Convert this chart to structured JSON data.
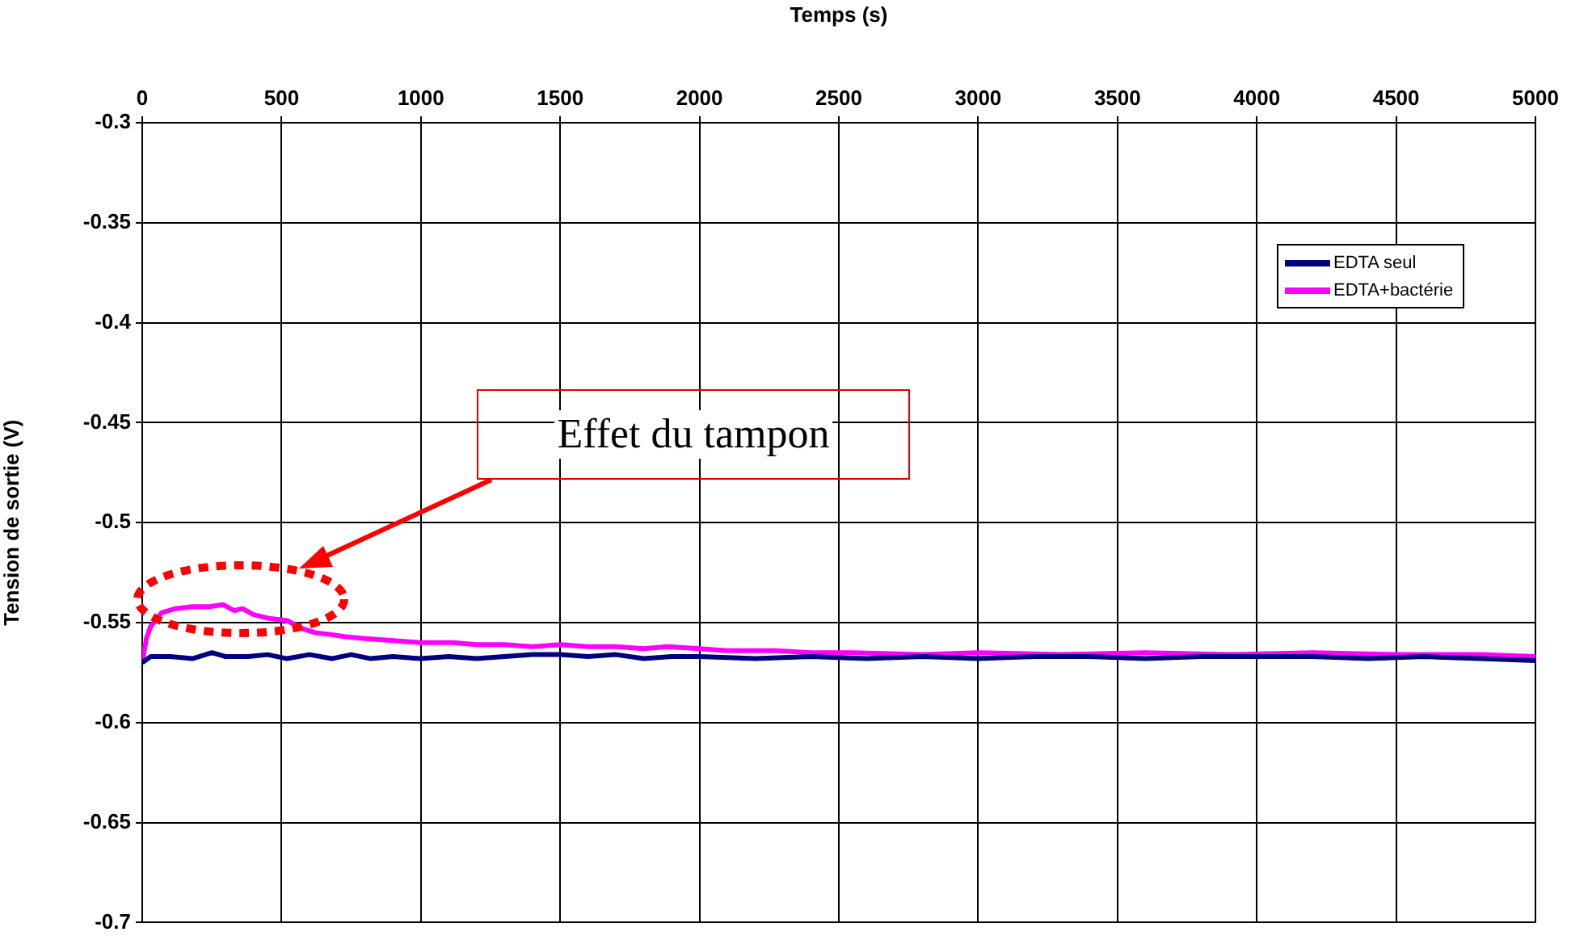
{
  "chart_data": {
    "type": "line",
    "xlabel": "Temps (s)",
    "ylabel": "Tension de sortie (V)",
    "xlim": [
      0,
      5000
    ],
    "xticks": [
      0,
      500,
      1000,
      1500,
      2000,
      2500,
      3000,
      3500,
      4000,
      4500,
      5000
    ],
    "ylim": [
      -0.7,
      -0.3
    ],
    "yticks": [
      -0.7,
      -0.65,
      -0.6,
      -0.55,
      -0.5,
      -0.45,
      -0.4,
      -0.35,
      -0.3
    ],
    "grid": true,
    "legend": "top right",
    "marker": "none",
    "line_style": "solid",
    "annotations": [
      "Effet du tampon"
    ],
    "series": [
      {
        "name": "EDTA seul",
        "color": "#000080",
        "x": [
          0,
          30,
          100,
          180,
          250,
          300,
          380,
          450,
          520,
          600,
          680,
          750,
          820,
          900,
          1000,
          1100,
          1200,
          1300,
          1400,
          1500,
          1600,
          1700,
          1800,
          1900,
          2000,
          2200,
          2400,
          2600,
          2800,
          3000,
          3200,
          3400,
          3600,
          3800,
          4000,
          4200,
          4400,
          4600,
          4800,
          5000
        ],
        "values": [
          -0.57,
          -0.567,
          -0.567,
          -0.568,
          -0.565,
          -0.567,
          -0.567,
          -0.566,
          -0.568,
          -0.566,
          -0.568,
          -0.566,
          -0.568,
          -0.567,
          -0.568,
          -0.567,
          -0.568,
          -0.567,
          -0.566,
          -0.566,
          -0.567,
          -0.566,
          -0.568,
          -0.567,
          -0.567,
          -0.568,
          -0.567,
          -0.568,
          -0.567,
          -0.568,
          -0.567,
          -0.567,
          -0.568,
          -0.567,
          -0.567,
          -0.567,
          -0.568,
          -0.567,
          -0.568,
          -0.569
        ]
      },
      {
        "name": "EDTA+bactérie",
        "color": "#ff00ff",
        "x": [
          0,
          15,
          30,
          70,
          120,
          180,
          240,
          290,
          330,
          360,
          400,
          460,
          520,
          575,
          620,
          680,
          725,
          800,
          900,
          1000,
          1114,
          1200,
          1300,
          1400,
          1502,
          1600,
          1700,
          1800,
          1885,
          2000,
          2100,
          2274,
          2400,
          2546,
          2800,
          3000,
          3300,
          3600,
          3900,
          4200,
          4500,
          4800,
          5000
        ],
        "values": [
          -0.57,
          -0.558,
          -0.552,
          -0.545,
          -0.543,
          -0.542,
          -0.542,
          -0.541,
          -0.544,
          -0.543,
          -0.546,
          -0.548,
          -0.549,
          -0.553,
          -0.555,
          -0.556,
          -0.557,
          -0.558,
          -0.559,
          -0.56,
          -0.56,
          -0.561,
          -0.561,
          -0.562,
          -0.561,
          -0.562,
          -0.562,
          -0.563,
          -0.562,
          -0.563,
          -0.564,
          -0.564,
          -0.565,
          -0.565,
          -0.566,
          -0.565,
          -0.566,
          -0.565,
          -0.566,
          -0.565,
          -0.566,
          -0.566,
          -0.567
        ]
      }
    ]
  }
}
